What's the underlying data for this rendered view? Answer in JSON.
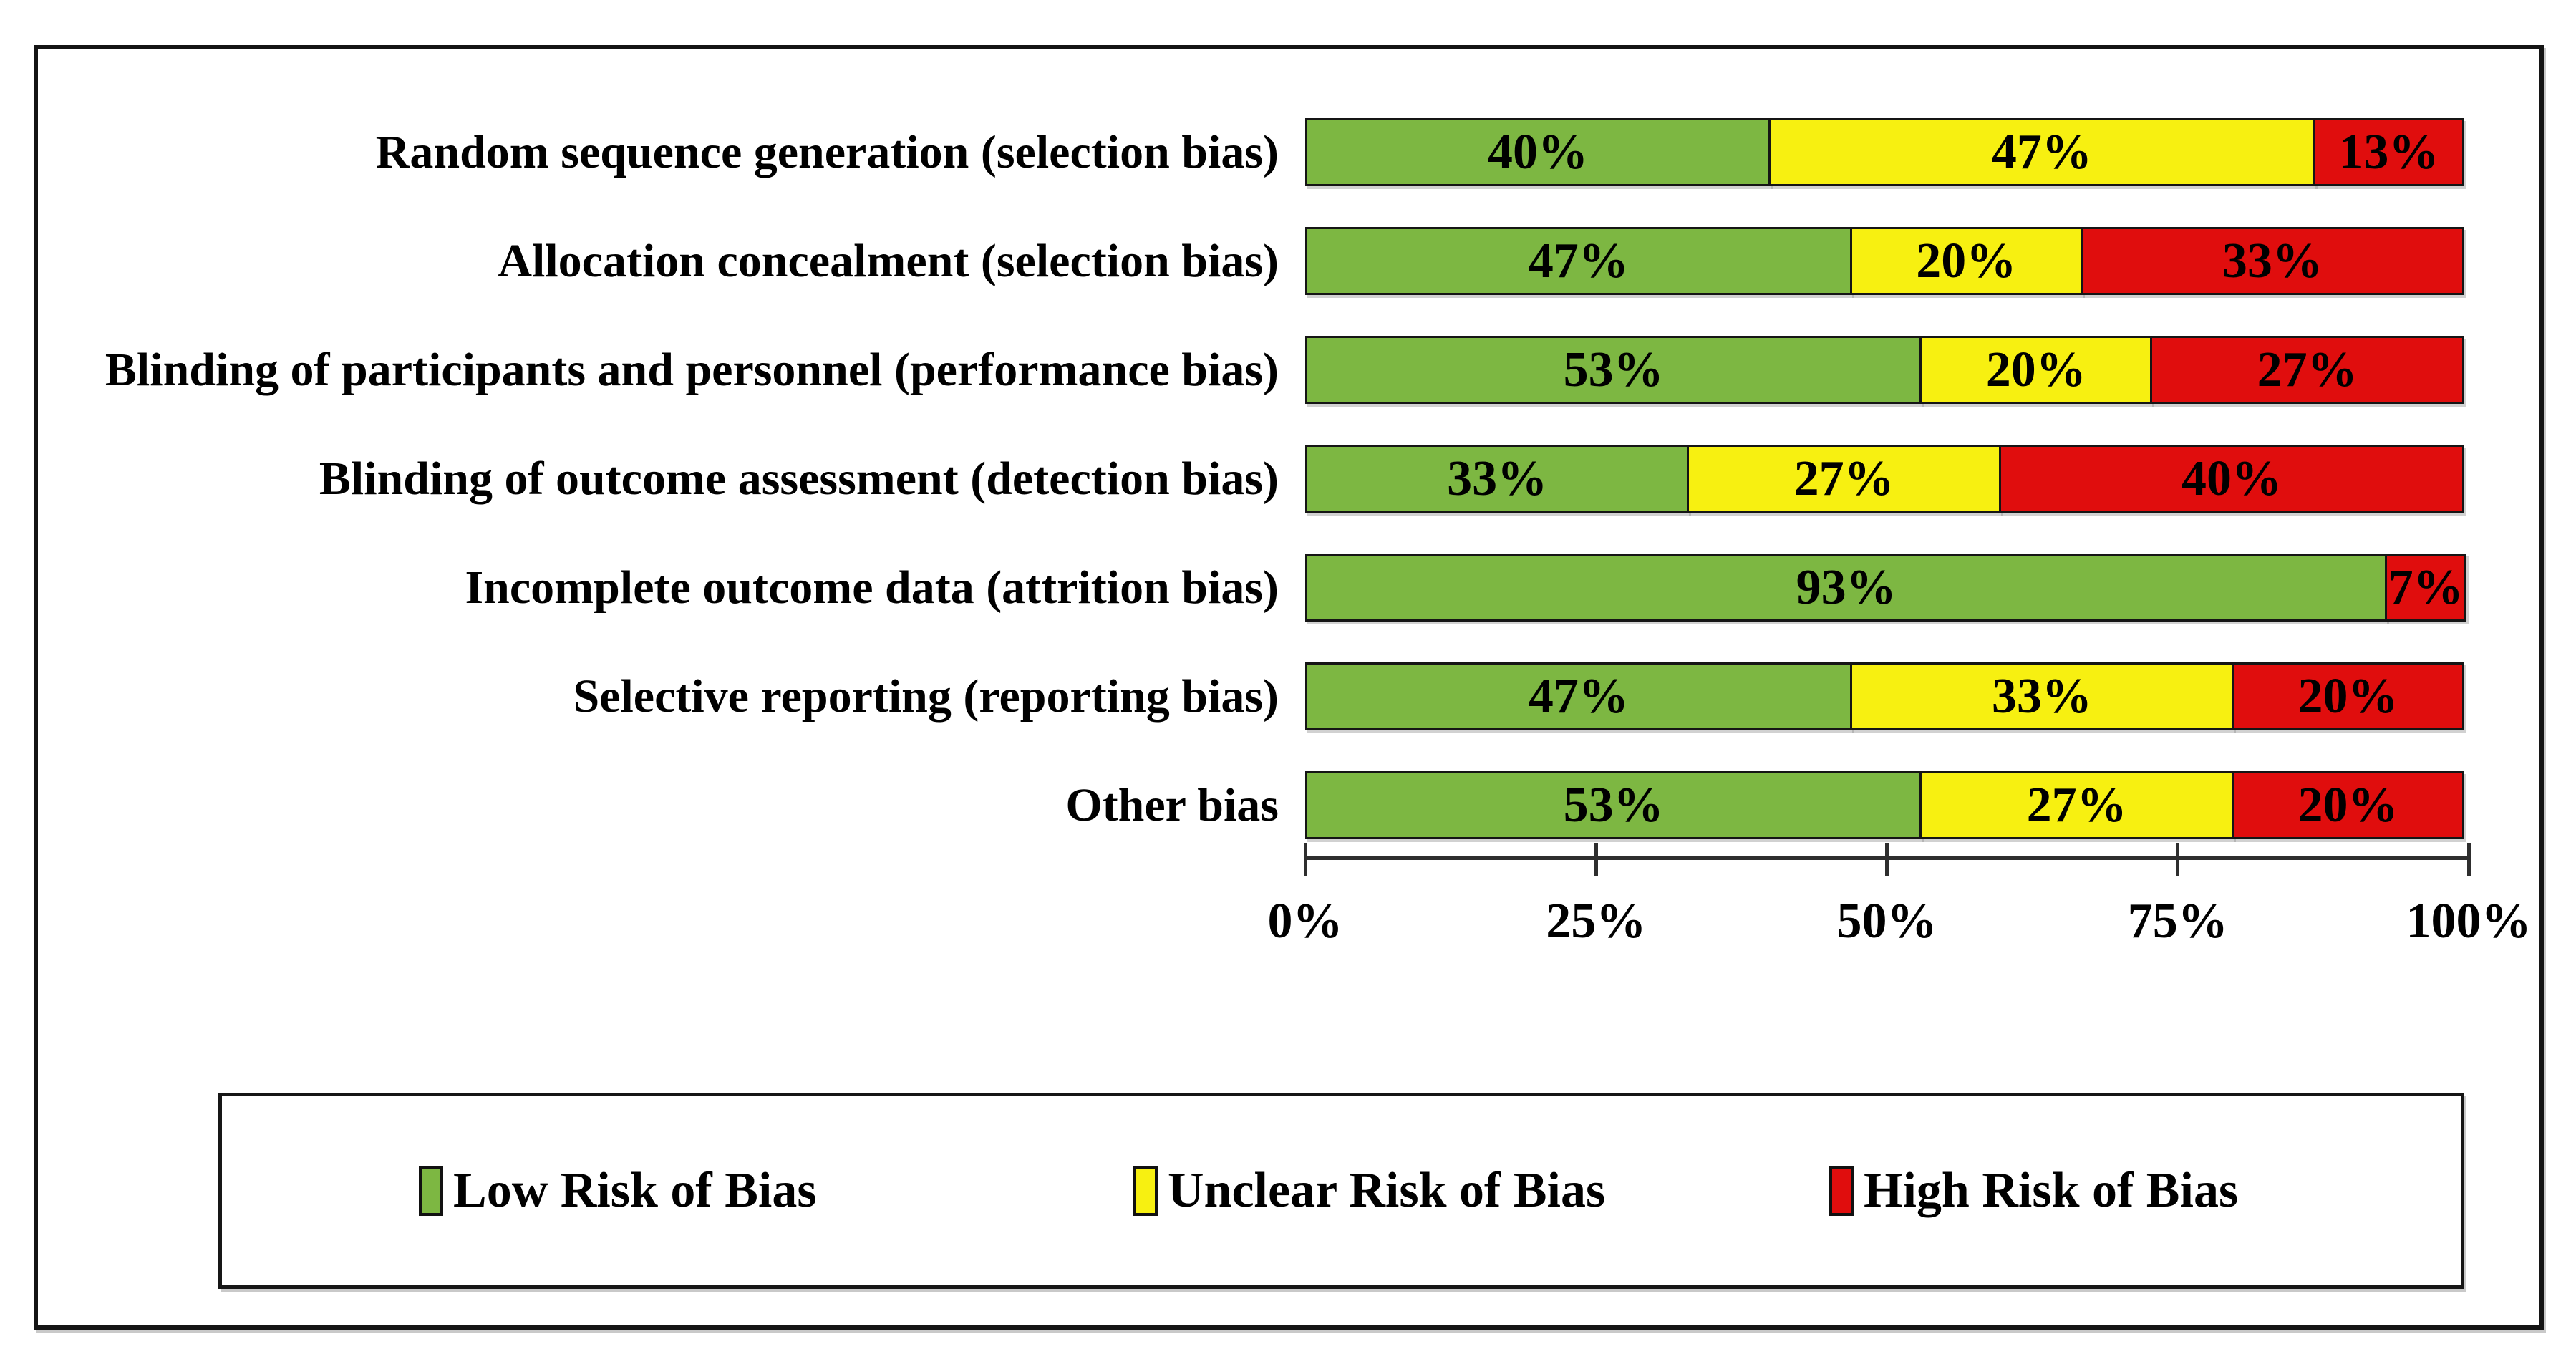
{
  "chart_data": {
    "type": "bar",
    "orientation": "horizontal_stacked",
    "title": "",
    "xlabel": "",
    "ylabel": "",
    "xlim": [
      0,
      100
    ],
    "grid": false,
    "legend_position": "bottom",
    "x_ticks": [
      "0%",
      "25%",
      "50%",
      "75%",
      "100%"
    ],
    "categories": [
      "Random sequence generation (selection bias)",
      "Allocation concealment (selection bias)",
      "Blinding of participants and personnel (performance bias)",
      "Blinding of outcome assessment (detection bias)",
      "Incomplete outcome data (attrition bias)",
      "Selective reporting (reporting bias)",
      "Other bias"
    ],
    "series": [
      {
        "key": "low",
        "name": "Low Risk of Bias",
        "color": "#7DB742",
        "values": [
          40,
          47,
          53,
          33,
          93,
          47,
          53
        ]
      },
      {
        "key": "unclear",
        "name": "Unclear Risk of Bias",
        "color": "#F7F011",
        "values": [
          47,
          20,
          20,
          27,
          0,
          33,
          27
        ]
      },
      {
        "key": "high",
        "name": "High Risk of Bias",
        "color": "#E00D0D",
        "values": [
          13,
          33,
          27,
          40,
          7,
          20,
          20
        ]
      }
    ],
    "value_suffix": "%"
  }
}
